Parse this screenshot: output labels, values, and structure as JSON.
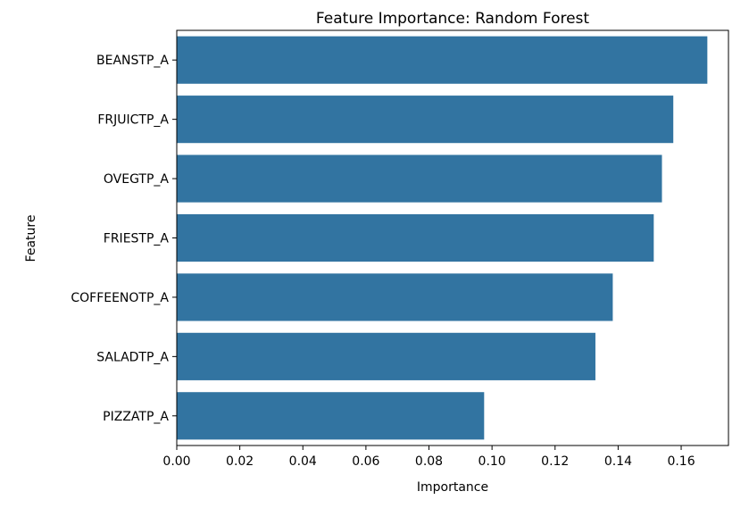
{
  "chart_data": {
    "type": "bar",
    "orientation": "horizontal",
    "title": "Feature Importance: Random Forest",
    "xlabel": "Importance",
    "ylabel": "Feature",
    "categories": [
      "BEANSTP_A",
      "FRJUICTP_A",
      "OVEGTP_A",
      "FRIESTP_A",
      "COFFEENOTP_A",
      "SALADTP_A",
      "PIZZATP_A"
    ],
    "values": [
      0.1683,
      0.1575,
      0.1539,
      0.1513,
      0.1383,
      0.1328,
      0.0975
    ],
    "xlim": [
      0,
      0.175
    ],
    "xticks": [
      "0.00",
      "0.02",
      "0.04",
      "0.06",
      "0.08",
      "0.10",
      "0.12",
      "0.14",
      "0.16"
    ],
    "bar_color": "#3274a1",
    "grid": false,
    "legend": "none"
  }
}
